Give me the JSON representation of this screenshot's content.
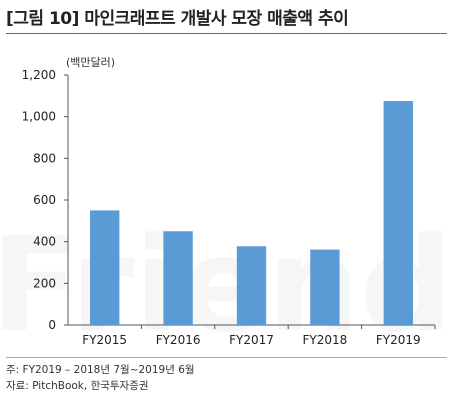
{
  "title": "[그림 10] 마인크래프트 개발사 모장 매출액 추이",
  "notes": {
    "line1": "주: FY2019 – 2018년 7월~2019년 6월",
    "line2": "자료: PitchBook, 한국투자증권"
  },
  "watermark": "Friend",
  "chart_data": {
    "type": "bar",
    "unit_label": "(백만달러)",
    "categories": [
      "FY2015",
      "FY2016",
      "FY2017",
      "FY2018",
      "FY2019"
    ],
    "values": [
      550,
      450,
      378,
      362,
      1075
    ],
    "ylim": [
      0,
      1200
    ],
    "yticks": [
      "0",
      "200",
      "400",
      "600",
      "800",
      "1,000",
      "1,200"
    ],
    "bar_color": "#5b9bd5",
    "grid": false,
    "legend": "none"
  }
}
